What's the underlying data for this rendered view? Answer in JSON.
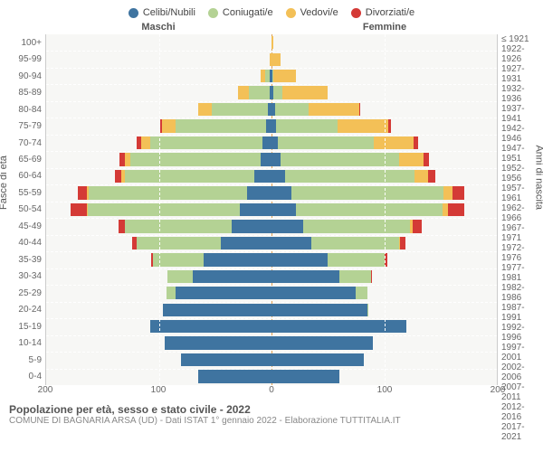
{
  "chart": {
    "type": "population-pyramid",
    "legend": [
      {
        "label": "Celibi/Nubili",
        "color": "#3f74a0"
      },
      {
        "label": "Coniugati/e",
        "color": "#b4d294"
      },
      {
        "label": "Vedovi/e",
        "color": "#f3c057"
      },
      {
        "label": "Divorziati/e",
        "color": "#d43a36"
      }
    ],
    "header_left": "Maschi",
    "header_right": "Femmine",
    "ylabel_left": "Fasce di età",
    "ylabel_right": "Anni di nascita",
    "xmax": 200,
    "xticks": [
      200,
      100,
      0,
      100,
      200
    ],
    "background_color": "#f7f7f5",
    "grid_color": "#ffffff",
    "center_line_color": "#e0a050",
    "age_labels": [
      "100+",
      "95-99",
      "90-94",
      "85-89",
      "80-84",
      "75-79",
      "70-74",
      "65-69",
      "60-64",
      "55-59",
      "50-54",
      "45-49",
      "40-44",
      "35-39",
      "30-34",
      "25-29",
      "20-24",
      "15-19",
      "10-14",
      "5-9",
      "0-4"
    ],
    "year_labels": [
      "≤ 1921",
      "1922-1926",
      "1927-1931",
      "1932-1936",
      "1937-1941",
      "1942-1946",
      "1947-1951",
      "1952-1956",
      "1957-1961",
      "1962-1966",
      "1967-1971",
      "1972-1976",
      "1977-1981",
      "1982-1986",
      "1987-1991",
      "1992-1996",
      "1997-2001",
      "2002-2006",
      "2007-2011",
      "2012-2016",
      "2017-2021"
    ],
    "male": [
      {
        "s": 0,
        "c": 0,
        "w": 0,
        "d": 0
      },
      {
        "s": 0,
        "c": 0,
        "w": 2,
        "d": 0
      },
      {
        "s": 2,
        "c": 4,
        "w": 4,
        "d": 0
      },
      {
        "s": 2,
        "c": 18,
        "w": 10,
        "d": 0
      },
      {
        "s": 3,
        "c": 50,
        "w": 12,
        "d": 0
      },
      {
        "s": 5,
        "c": 80,
        "w": 12,
        "d": 2
      },
      {
        "s": 8,
        "c": 100,
        "w": 8,
        "d": 4
      },
      {
        "s": 10,
        "c": 115,
        "w": 5,
        "d": 5
      },
      {
        "s": 15,
        "c": 115,
        "w": 3,
        "d": 6
      },
      {
        "s": 22,
        "c": 140,
        "w": 2,
        "d": 8
      },
      {
        "s": 28,
        "c": 135,
        "w": 1,
        "d": 14
      },
      {
        "s": 35,
        "c": 95,
        "w": 0,
        "d": 6
      },
      {
        "s": 45,
        "c": 75,
        "w": 0,
        "d": 4
      },
      {
        "s": 60,
        "c": 45,
        "w": 0,
        "d": 2
      },
      {
        "s": 70,
        "c": 22,
        "w": 0,
        "d": 0
      },
      {
        "s": 85,
        "c": 8,
        "w": 0,
        "d": 0
      },
      {
        "s": 96,
        "c": 0,
        "w": 0,
        "d": 0
      },
      {
        "s": 108,
        "c": 0,
        "w": 0,
        "d": 0
      },
      {
        "s": 95,
        "c": 0,
        "w": 0,
        "d": 0
      },
      {
        "s": 80,
        "c": 0,
        "w": 0,
        "d": 0
      },
      {
        "s": 65,
        "c": 0,
        "w": 0,
        "d": 0
      }
    ],
    "female": [
      {
        "s": 0,
        "c": 0,
        "w": 2,
        "d": 0
      },
      {
        "s": 0,
        "c": 0,
        "w": 8,
        "d": 0
      },
      {
        "s": 1,
        "c": 1,
        "w": 20,
        "d": 0
      },
      {
        "s": 2,
        "c": 8,
        "w": 40,
        "d": 0
      },
      {
        "s": 3,
        "c": 30,
        "w": 45,
        "d": 1
      },
      {
        "s": 4,
        "c": 55,
        "w": 45,
        "d": 2
      },
      {
        "s": 6,
        "c": 85,
        "w": 35,
        "d": 4
      },
      {
        "s": 8,
        "c": 105,
        "w": 22,
        "d": 5
      },
      {
        "s": 12,
        "c": 115,
        "w": 12,
        "d": 6
      },
      {
        "s": 18,
        "c": 135,
        "w": 8,
        "d": 10
      },
      {
        "s": 22,
        "c": 130,
        "w": 5,
        "d": 14
      },
      {
        "s": 28,
        "c": 95,
        "w": 2,
        "d": 8
      },
      {
        "s": 35,
        "c": 78,
        "w": 1,
        "d": 5
      },
      {
        "s": 50,
        "c": 50,
        "w": 0,
        "d": 3
      },
      {
        "s": 60,
        "c": 28,
        "w": 0,
        "d": 1
      },
      {
        "s": 75,
        "c": 10,
        "w": 0,
        "d": 0
      },
      {
        "s": 85,
        "c": 1,
        "w": 0,
        "d": 0
      },
      {
        "s": 120,
        "c": 0,
        "w": 0,
        "d": 0
      },
      {
        "s": 90,
        "c": 0,
        "w": 0,
        "d": 0
      },
      {
        "s": 82,
        "c": 0,
        "w": 0,
        "d": 0
      },
      {
        "s": 60,
        "c": 0,
        "w": 0,
        "d": 0
      }
    ]
  },
  "footer": {
    "title": "Popolazione per età, sesso e stato civile - 2022",
    "subtitle": "COMUNE DI BAGNARIA ARSA (UD) - Dati ISTAT 1° gennaio 2022 - Elaborazione TUTTITALIA.IT"
  }
}
